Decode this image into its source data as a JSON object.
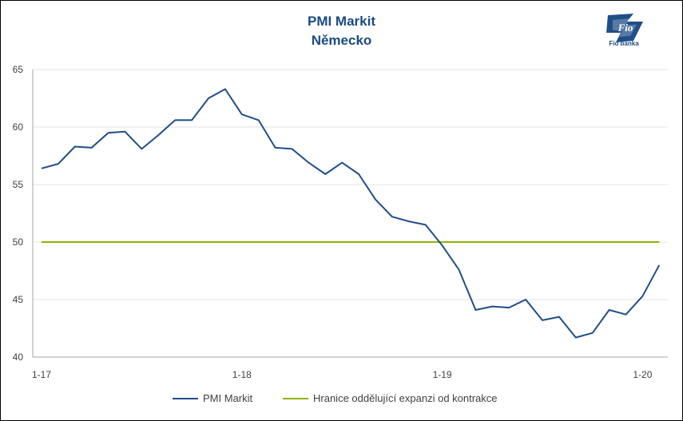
{
  "brand": {
    "logo_text": "Fio banka"
  },
  "chart_data": {
    "type": "line",
    "title": "PMI Markit",
    "subtitle": "Německo",
    "xlabel": "",
    "ylabel": "",
    "ylim": [
      40,
      65
    ],
    "yticks": [
      40,
      45,
      50,
      55,
      60,
      65
    ],
    "xtick_labels": [
      "1-17",
      "1-18",
      "1-19",
      "1-20"
    ],
    "x": [
      "2017-01",
      "2017-02",
      "2017-03",
      "2017-04",
      "2017-05",
      "2017-06",
      "2017-07",
      "2017-08",
      "2017-09",
      "2017-10",
      "2017-11",
      "2017-12",
      "2018-01",
      "2018-02",
      "2018-03",
      "2018-04",
      "2018-05",
      "2018-06",
      "2018-07",
      "2018-08",
      "2018-09",
      "2018-10",
      "2018-11",
      "2018-12",
      "2019-01",
      "2019-02",
      "2019-03",
      "2019-04",
      "2019-05",
      "2019-06",
      "2019-07",
      "2019-08",
      "2019-09",
      "2019-10",
      "2019-11",
      "2019-12",
      "2020-01",
      "2020-02"
    ],
    "grid": "horizontal",
    "legend_position": "bottom",
    "series": [
      {
        "name": "PMI Markit",
        "color": "#1f4e88",
        "values": [
          56.4,
          56.8,
          58.3,
          58.2,
          59.5,
          59.6,
          58.1,
          59.3,
          60.6,
          60.6,
          62.5,
          63.3,
          61.1,
          60.6,
          58.2,
          58.1,
          56.9,
          55.9,
          56.9,
          55.9,
          53.7,
          52.2,
          51.8,
          51.5,
          49.7,
          47.6,
          44.1,
          44.4,
          44.3,
          45.0,
          43.2,
          43.5,
          41.7,
          42.1,
          44.1,
          43.7,
          45.3,
          48.0
        ]
      },
      {
        "name": "Hranice oddělující expanzi od kontrakce",
        "color": "#8db600",
        "values": [
          50,
          50,
          50,
          50,
          50,
          50,
          50,
          50,
          50,
          50,
          50,
          50,
          50,
          50,
          50,
          50,
          50,
          50,
          50,
          50,
          50,
          50,
          50,
          50,
          50,
          50,
          50,
          50,
          50,
          50,
          50,
          50,
          50,
          50,
          50,
          50,
          50,
          50
        ]
      }
    ]
  }
}
